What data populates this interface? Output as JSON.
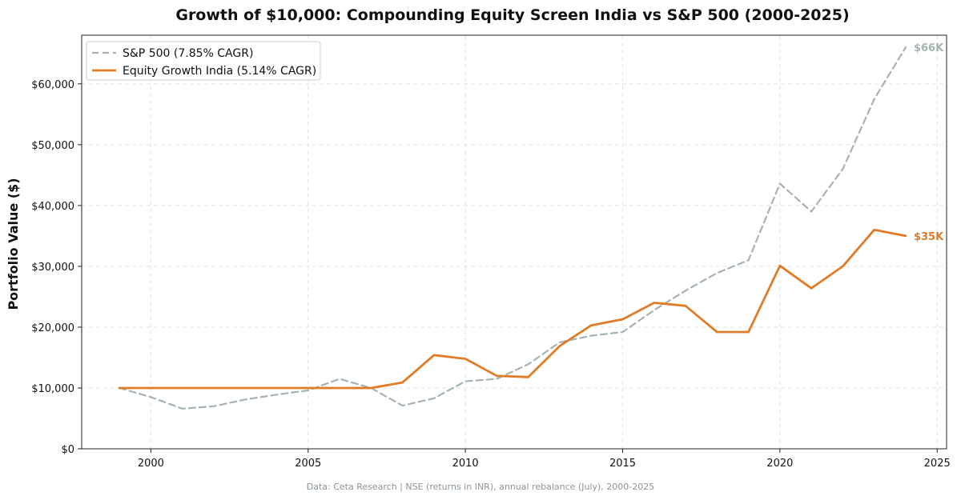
{
  "chart_data": {
    "type": "line",
    "title": "Growth of $10,000: Compounding Equity Screen India vs S&P 500 (2000-2025)",
    "xlabel": "",
    "ylabel": "Portfolio Value ($)",
    "xlim": [
      1997.8,
      2025.3
    ],
    "ylim": [
      0,
      68000
    ],
    "x_ticks": [
      2000,
      2005,
      2010,
      2015,
      2020,
      2025
    ],
    "x_tick_labels": [
      "2000",
      "2005",
      "2010",
      "2015",
      "2020",
      "2025"
    ],
    "y_ticks": [
      0,
      10000,
      20000,
      30000,
      40000,
      50000,
      60000
    ],
    "y_tick_labels": [
      "$0",
      "$10,000",
      "$20,000",
      "$30,000",
      "$40,000",
      "$50,000",
      "$60,000"
    ],
    "grid": true,
    "legend_position": "top-left",
    "x": [
      1999,
      2000,
      2001,
      2002,
      2003,
      2004,
      2005,
      2006,
      2007,
      2008,
      2009,
      2010,
      2011,
      2012,
      2013,
      2014,
      2015,
      2016,
      2017,
      2018,
      2019,
      2020,
      2021,
      2022,
      2023,
      2024
    ],
    "series": [
      {
        "name": "S&P 500 (7.85% CAGR)",
        "color": "#a6b3b3",
        "style": "dashed",
        "values": [
          10000,
          8500,
          6600,
          7000,
          8100,
          8900,
          9600,
          11500,
          10000,
          7100,
          8300,
          11100,
          11500,
          13900,
          17500,
          18600,
          19200,
          22800,
          26000,
          28900,
          31000,
          43600,
          39000,
          46000,
          57500,
          66000
        ],
        "end_label": "$66K"
      },
      {
        "name": "Equity Growth India (5.14% CAGR)",
        "color": "#e07b28",
        "style": "solid",
        "values": [
          10000,
          10000,
          10000,
          10000,
          10000,
          10000,
          10000,
          10000,
          10000,
          10900,
          15400,
          14800,
          12000,
          11800,
          16900,
          20300,
          21300,
          24000,
          23500,
          19200,
          19200,
          30100,
          26400,
          30000,
          36000,
          35000
        ],
        "end_label": "$35K"
      }
    ],
    "source_note": "Data: Ceta Research | NSE (returns in INR), annual rebalance (July), 2000-2025"
  }
}
